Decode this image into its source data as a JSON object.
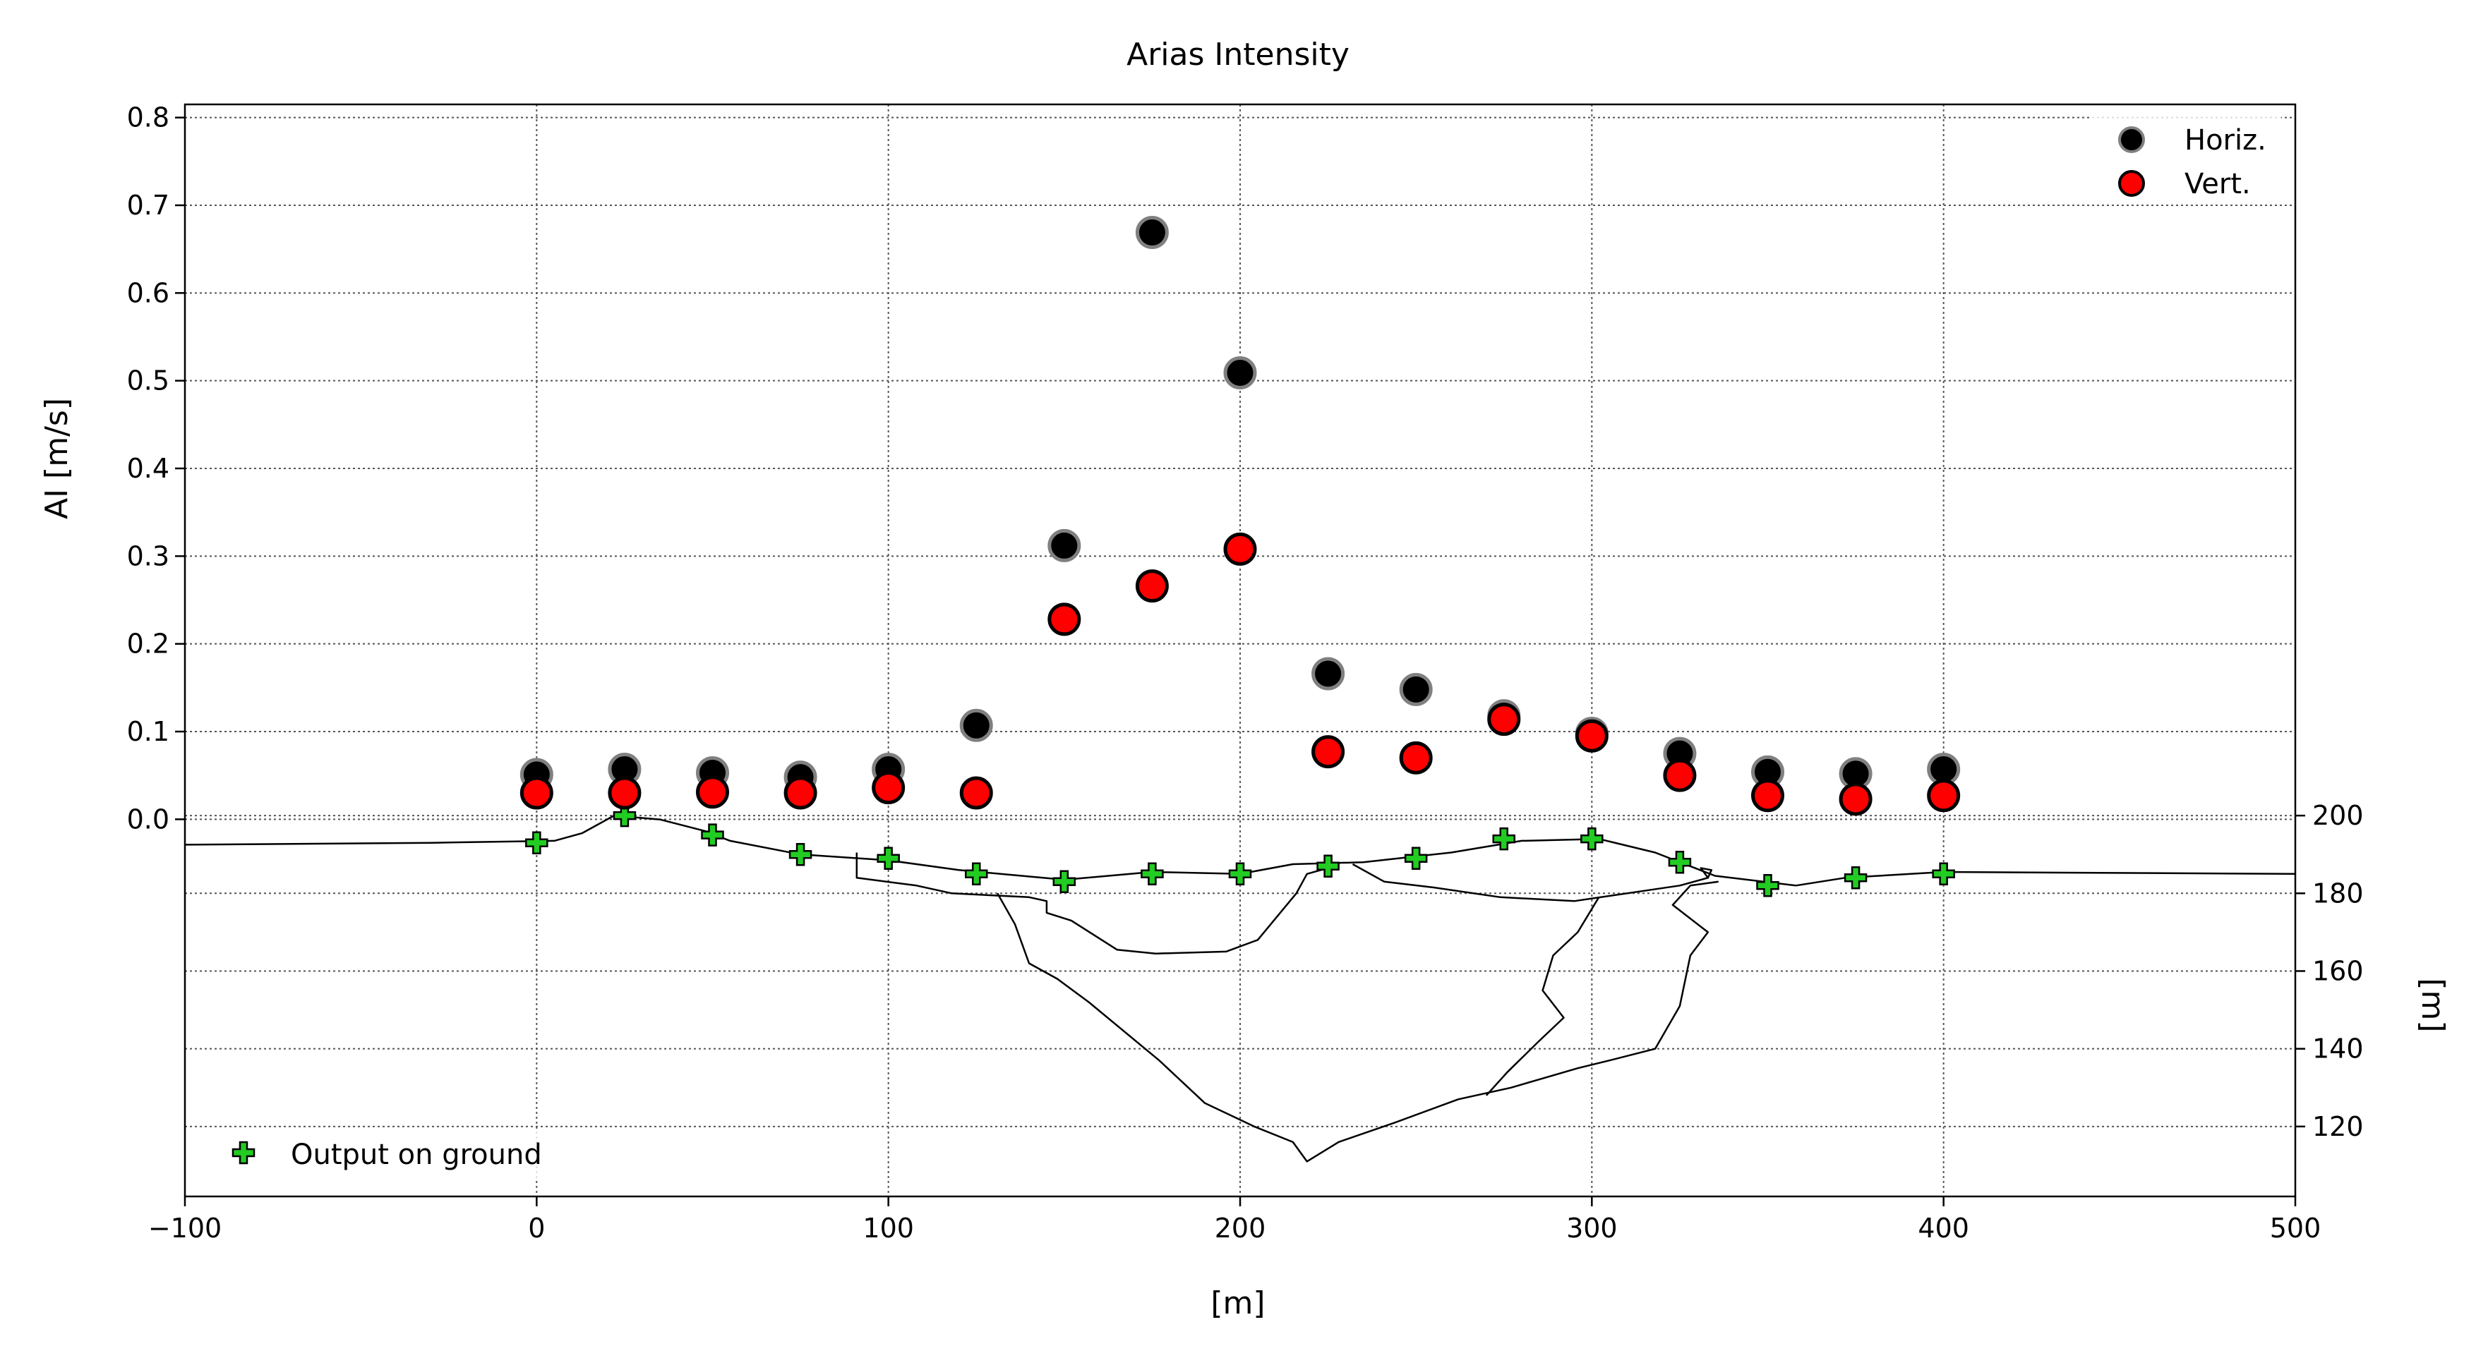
{
  "chart_data": {
    "type": "scatter",
    "title": "Arias Intensity",
    "xlabel": "[m]",
    "ylabel": "AI [m/s]",
    "y2label": "[m]",
    "xlim": [
      -100,
      500
    ],
    "ylim": [
      -0.43,
      0.815
    ],
    "y2lim": [
      102,
      383
    ],
    "x_ticks": [
      -100,
      0,
      100,
      200,
      300,
      400,
      500
    ],
    "x_tick_labels": [
      "−100",
      "0",
      "100",
      "200",
      "300",
      "400",
      "500"
    ],
    "y_ticks": [
      0.0,
      0.1,
      0.2,
      0.3,
      0.4,
      0.5,
      0.6,
      0.7,
      0.8
    ],
    "y_tick_labels": [
      "0.0",
      "0.1",
      "0.2",
      "0.3",
      "0.4",
      "0.5",
      "0.6",
      "0.7",
      "0.8"
    ],
    "y2_ticks": [
      120,
      140,
      160,
      180,
      200
    ],
    "y2_tick_labels": [
      "120",
      "140",
      "160",
      "180",
      "200"
    ],
    "grid": true,
    "series": [
      {
        "name": "Horiz.",
        "color": "#000000",
        "edge": "#808080",
        "x": [
          0,
          25,
          50,
          75,
          100,
          125,
          150,
          175,
          200,
          225,
          250,
          275,
          300,
          325,
          350,
          375,
          400
        ],
        "y": [
          0.051,
          0.057,
          0.053,
          0.048,
          0.057,
          0.107,
          0.312,
          0.669,
          0.509,
          0.166,
          0.148,
          0.118,
          0.098,
          0.075,
          0.054,
          0.052,
          0.057
        ]
      },
      {
        "name": "Vert.",
        "color": "#ff0000",
        "edge": "#000000",
        "x": [
          0,
          25,
          50,
          75,
          100,
          125,
          150,
          175,
          200,
          225,
          250,
          275,
          300,
          325,
          350,
          375,
          400
        ],
        "y": [
          0.03,
          0.03,
          0.031,
          0.03,
          0.036,
          0.03,
          0.228,
          0.266,
          0.308,
          0.077,
          0.07,
          0.114,
          0.095,
          0.05,
          0.027,
          0.023,
          0.027
        ]
      }
    ],
    "ground_output": {
      "name": "Output on ground",
      "color": "#22cc22",
      "x": [
        0,
        25,
        50,
        75,
        100,
        125,
        150,
        175,
        200,
        225,
        250,
        275,
        300,
        325,
        350,
        375,
        400
      ],
      "elev": [
        193,
        200,
        195,
        190,
        189,
        185,
        183,
        185,
        185,
        187,
        189,
        194,
        194,
        188,
        182,
        184,
        185
      ]
    },
    "geology": {
      "surface": [
        [
          -100,
          192.5
        ],
        [
          -30,
          193
        ],
        [
          5,
          193.5
        ],
        [
          13,
          195.5
        ],
        [
          22,
          200
        ],
        [
          35,
          199
        ],
        [
          48,
          196
        ],
        [
          55,
          193.5
        ],
        [
          75,
          190
        ],
        [
          100,
          188.5
        ],
        [
          120,
          186
        ],
        [
          150,
          183.5
        ],
        [
          175,
          185.5
        ],
        [
          200,
          185
        ],
        [
          215,
          187.5
        ],
        [
          235,
          188
        ],
        [
          260,
          190.5
        ],
        [
          280,
          193.5
        ],
        [
          302,
          194
        ],
        [
          318,
          190.5
        ],
        [
          335,
          184.5
        ],
        [
          358,
          182
        ],
        [
          372,
          184
        ],
        [
          400,
          185.5
        ],
        [
          500,
          185
        ]
      ],
      "layer1": [
        [
          91,
          190.5
        ],
        [
          91,
          184
        ],
        [
          108,
          182
        ],
        [
          118,
          180
        ],
        [
          140,
          179
        ],
        [
          145,
          178
        ],
        [
          145,
          175
        ],
        [
          152,
          173
        ],
        [
          165,
          165.5
        ],
        [
          176,
          164.5
        ],
        [
          196,
          165
        ],
        [
          205,
          168
        ],
        [
          216,
          180
        ],
        [
          219,
          185
        ],
        [
          227,
          187
        ]
      ],
      "layer2": [
        [
          232,
          187.5
        ],
        [
          241,
          183
        ],
        [
          255,
          181.5
        ],
        [
          274,
          179
        ],
        [
          295,
          178
        ],
        [
          310,
          180
        ],
        [
          325,
          182
        ],
        [
          333,
          184
        ],
        [
          334,
          186
        ],
        [
          331,
          186.5
        ],
        [
          333,
          184
        ]
      ],
      "basin": [
        [
          131,
          180
        ],
        [
          136,
          172
        ],
        [
          140,
          162
        ],
        [
          148,
          158
        ],
        [
          157,
          152
        ],
        [
          177,
          137
        ],
        [
          190,
          126
        ],
        [
          204,
          120
        ],
        [
          215,
          116
        ],
        [
          219,
          111
        ],
        [
          228,
          116
        ],
        [
          244,
          121
        ],
        [
          262,
          127
        ],
        [
          277,
          130
        ],
        [
          296,
          135
        ],
        [
          305,
          137
        ],
        [
          318,
          140
        ],
        [
          325,
          151
        ],
        [
          328,
          164
        ],
        [
          333,
          170
        ],
        [
          323,
          177
        ],
        [
          328,
          182
        ],
        [
          336,
          183
        ]
      ],
      "inner": [
        [
          302,
          179
        ],
        [
          296,
          170
        ],
        [
          289,
          164
        ],
        [
          286,
          155
        ],
        [
          292,
          148
        ],
        [
          285,
          142
        ],
        [
          276,
          134
        ],
        [
          270,
          128
        ]
      ]
    }
  }
}
